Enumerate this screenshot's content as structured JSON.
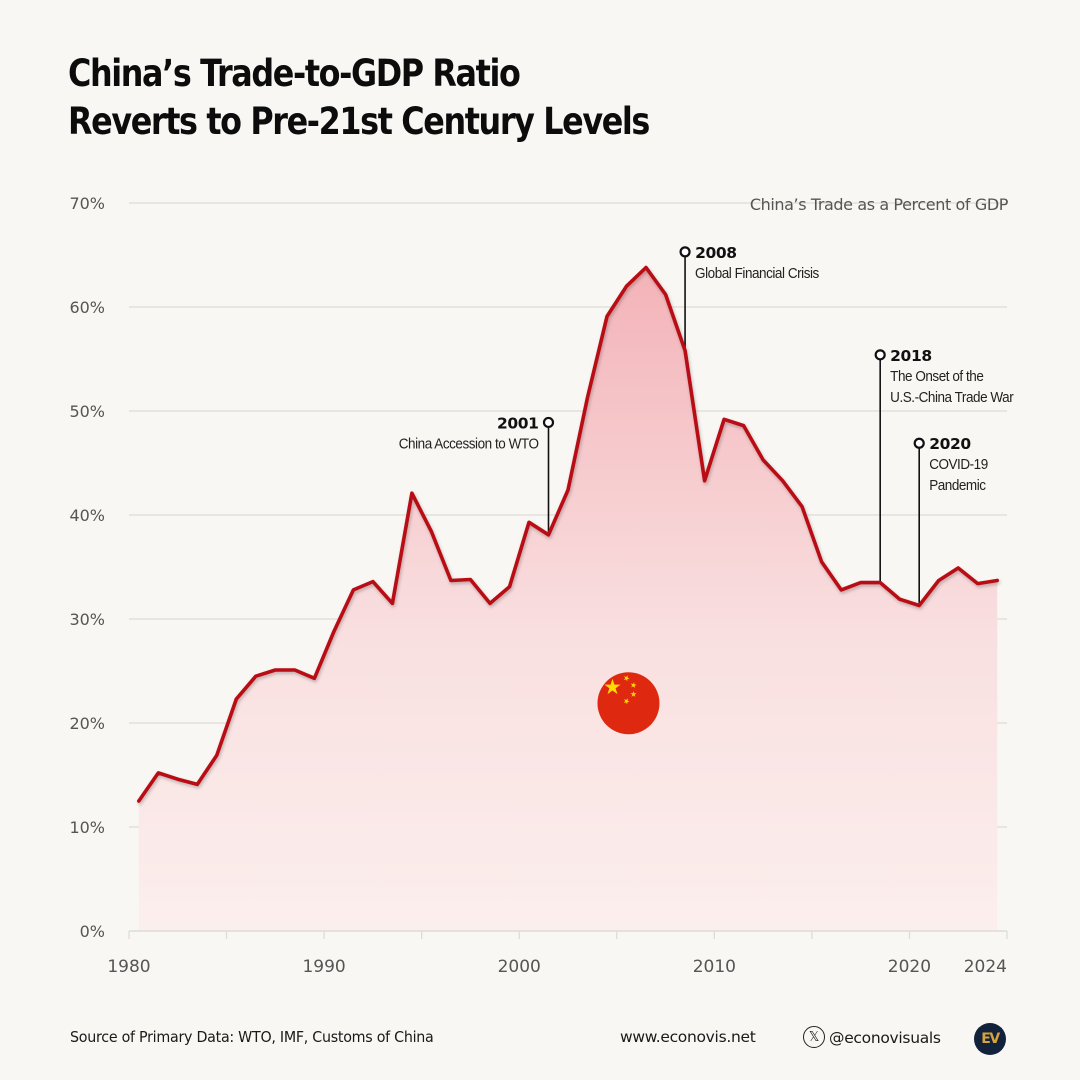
{
  "title": {
    "line1": "China’s Trade-to-GDP Ratio",
    "line2": "Reverts to Pre-21st Century Levels"
  },
  "colors": {
    "background": "#f8f7f3",
    "line": "#b90d13",
    "fill_top": "#f3b3b8",
    "fill_bottom": "#fbefed",
    "grid": "#dedcd6",
    "axis_text": "#555555",
    "annotation": "#111111"
  },
  "chart_data": {
    "type": "area",
    "title": "China’s Trade as a Percent of GDP",
    "xlabel": "",
    "ylabel": "",
    "ylim": [
      0,
      70
    ],
    "xlim": [
      1980,
      2025
    ],
    "grid": true,
    "y_ticks": [
      0,
      10,
      20,
      30,
      40,
      50,
      60,
      70
    ],
    "y_tick_labels": [
      "0%",
      "10%",
      "20%",
      "30%",
      "40%",
      "50%",
      "60%",
      "70%"
    ],
    "x_ticks_minor": [
      1980,
      1985,
      1990,
      1995,
      2000,
      2005,
      2010,
      2015,
      2020,
      2025
    ],
    "x_tick_labels": [
      {
        "year": 1980,
        "label": "1980"
      },
      {
        "year": 1990,
        "label": "1990"
      },
      {
        "year": 2000,
        "label": "2000"
      },
      {
        "year": 2010,
        "label": "2010"
      },
      {
        "year": 2020,
        "label": "2020"
      },
      {
        "year": 2024.6,
        "label": "2024"
      }
    ],
    "series": [
      {
        "name": "Trade as % of GDP",
        "x": [
          1980,
          1981,
          1982,
          1983,
          1984,
          1985,
          1986,
          1987,
          1988,
          1989,
          1990,
          1991,
          1992,
          1993,
          1994,
          1995,
          1996,
          1997,
          1998,
          1999,
          2000,
          2001,
          2002,
          2003,
          2004,
          2005,
          2006,
          2007,
          2008,
          2009,
          2010,
          2011,
          2012,
          2013,
          2014,
          2015,
          2016,
          2017,
          2018,
          2019,
          2020,
          2021,
          2022,
          2023,
          2024
        ],
        "values": [
          12.5,
          15.2,
          14.6,
          14.1,
          16.9,
          22.3,
          24.5,
          25.1,
          25.1,
          24.3,
          28.8,
          32.8,
          33.6,
          31.5,
          42.1,
          38.4,
          33.7,
          33.8,
          31.5,
          33.1,
          39.3,
          38.1,
          42.4,
          51.3,
          59.1,
          62.0,
          63.8,
          61.2,
          55.8,
          43.3,
          49.2,
          48.6,
          45.3,
          43.3,
          40.8,
          35.5,
          32.8,
          33.5,
          33.5,
          31.9,
          31.3,
          33.7,
          34.9,
          33.4,
          33.7
        ]
      }
    ],
    "annotations": [
      {
        "year": 2001,
        "value": 38.1,
        "marker_value": 48.9,
        "label_year": "2001",
        "text": [
          "China Accession to WTO"
        ],
        "side": "left"
      },
      {
        "year": 2008,
        "value": 55.8,
        "marker_value": 65.3,
        "label_year": "2008",
        "text": [
          "Global Financial Crisis"
        ],
        "side": "right"
      },
      {
        "year": 2018,
        "value": 33.5,
        "marker_value": 55.4,
        "label_year": "2018",
        "text": [
          "The Onset of the",
          "U.S.-China Trade War"
        ],
        "side": "right"
      },
      {
        "year": 2020,
        "value": 31.3,
        "marker_value": 46.9,
        "label_year": "2020",
        "text": [
          "COVID-19",
          "Pandemic"
        ],
        "side": "right"
      }
    ],
    "decoration": "china-flag-icon"
  },
  "footer": {
    "source": "Source of Primary Data: WTO, IMF, Customs of China",
    "website": "www.econovis.net",
    "x_handle": "@econovisuals",
    "x_icon": "x-logo-icon",
    "logo_text": "EV"
  }
}
